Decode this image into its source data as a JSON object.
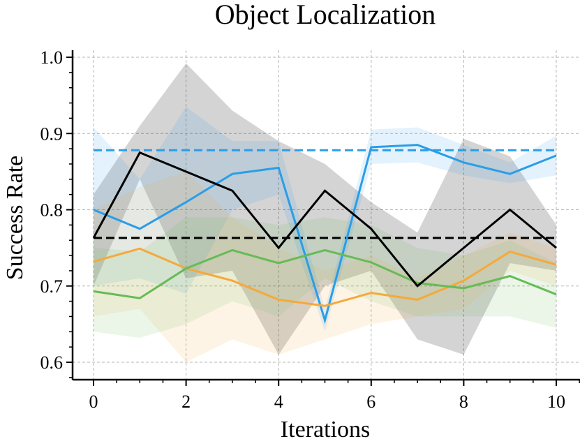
{
  "chart_data": {
    "type": "line",
    "title": "Object Localization",
    "xlabel": "Iterations",
    "ylabel": "Success Rate",
    "xlim": [
      0,
      10
    ],
    "ylim": [
      0.6,
      1.0
    ],
    "xticks": [
      "0",
      "2",
      "4",
      "6",
      "8",
      "10"
    ],
    "yticks": [
      "0.6",
      "0.7",
      "0.8",
      "0.9",
      "1.0"
    ],
    "grid": true,
    "x": [
      0,
      1,
      2,
      3,
      4,
      5,
      6,
      7,
      8,
      9,
      10
    ],
    "series": [
      {
        "color": "#000000",
        "values": [
          0.763,
          0.875,
          0.85,
          0.825,
          0.75,
          0.825,
          0.775,
          0.7,
          0.75,
          0.8,
          0.75
        ],
        "lower": [
          0.7,
          0.84,
          0.71,
          0.72,
          0.61,
          0.7,
          0.72,
          0.63,
          0.61,
          0.73,
          0.72
        ],
        "upper": [
          0.82,
          0.91,
          0.992,
          0.93,
          0.89,
          0.86,
          0.81,
          0.77,
          0.893,
          0.87,
          0.78
        ]
      },
      {
        "color": "#2a9de8",
        "values": [
          0.8,
          0.775,
          0.81,
          0.847,
          0.855,
          0.655,
          0.882,
          0.885,
          0.862,
          0.847,
          0.871
        ],
        "lower": [
          0.7,
          0.71,
          0.69,
          0.8,
          0.82,
          0.64,
          0.86,
          0.862,
          0.845,
          0.835,
          0.845
        ],
        "upper": [
          0.908,
          0.84,
          0.935,
          0.89,
          0.89,
          0.67,
          0.905,
          0.908,
          0.885,
          0.862,
          0.897
        ]
      },
      {
        "color": "#f5a93a",
        "values": [
          0.732,
          0.749,
          0.723,
          0.707,
          0.682,
          0.674,
          0.691,
          0.682,
          0.707,
          0.745,
          0.728
        ],
        "lower": [
          0.66,
          0.67,
          0.6,
          0.63,
          0.61,
          0.63,
          0.65,
          0.66,
          0.67,
          0.72,
          0.7
        ],
        "upper": [
          0.8,
          0.83,
          0.85,
          0.79,
          0.75,
          0.72,
          0.74,
          0.71,
          0.74,
          0.77,
          0.75
        ]
      },
      {
        "color": "#66bb55",
        "values": [
          0.693,
          0.684,
          0.723,
          0.747,
          0.73,
          0.747,
          0.731,
          0.704,
          0.697,
          0.713,
          0.689
        ],
        "lower": [
          0.64,
          0.632,
          0.65,
          0.68,
          0.66,
          0.71,
          0.68,
          0.66,
          0.66,
          0.66,
          0.645
        ],
        "upper": [
          0.75,
          0.745,
          0.79,
          0.79,
          0.78,
          0.79,
          0.78,
          0.75,
          0.74,
          0.76,
          0.73
        ]
      }
    ],
    "baselines": [
      {
        "color": "#2a9de8",
        "value": 0.878,
        "style": "dashed"
      },
      {
        "color": "#000000",
        "value": 0.763,
        "style": "dashed"
      }
    ]
  }
}
